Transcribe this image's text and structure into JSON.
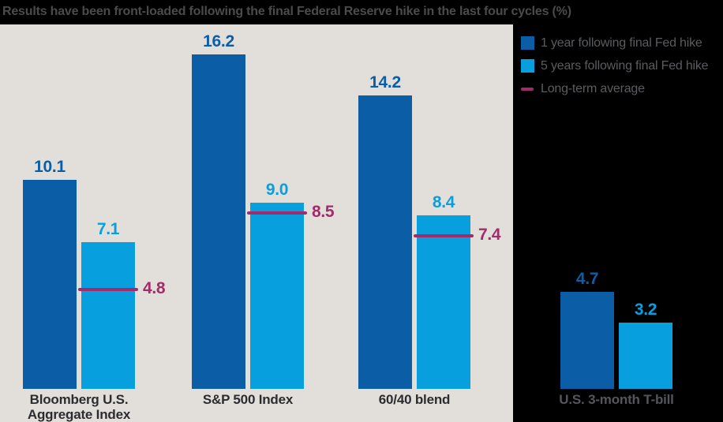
{
  "title": "Results have been front-loaded following the final Federal Reserve hike in the last four cycles (%)",
  "colors": {
    "dark_blue": "#0b5ea6",
    "light_blue": "#089fdf",
    "magenta": "#a32b6b",
    "panel_bg": "#e2dfda",
    "page_bg": "#000000",
    "title_text": "#4b4b4e",
    "legend_text": "#5b5c5f",
    "category_text": "#2c2c30",
    "category_text_on_black": "#55565b"
  },
  "legend": {
    "items": [
      {
        "label": "1 year following final Fed hike",
        "swatch": "square",
        "color": "dark_blue"
      },
      {
        "label": "5 years following final Fed hike",
        "swatch": "square",
        "color": "light_blue"
      },
      {
        "label": "Long-term average",
        "swatch": "dash",
        "color": "magenta"
      }
    ]
  },
  "chart_data": {
    "type": "bar",
    "unit": "%",
    "title": "Results have been front-loaded following the final Federal Reserve hike in the last four cycles (%)",
    "legend_position": "top-right",
    "grid": false,
    "ylim": [
      0,
      17.6
    ],
    "series_names": [
      "1 year following final Fed hike",
      "5 years following final Fed hike"
    ],
    "categories": [
      "Bloomberg U.S. Aggregate Index",
      "S&P 500 Index",
      "60/40 blend",
      "U.S. 3-month T-bill"
    ],
    "series": [
      {
        "name": "1 year following final Fed hike",
        "values": [
          10.1,
          16.2,
          14.2,
          4.7
        ]
      },
      {
        "name": "5 years following final Fed hike",
        "values": [
          7.1,
          9.0,
          8.4,
          3.2
        ]
      }
    ],
    "long_term_average": [
      4.8,
      8.5,
      7.4,
      null
    ],
    "groups": [
      {
        "category_lines": [
          "Bloomberg U.S.",
          "Aggregate Index"
        ],
        "one_year": 10.1,
        "five_years": 7.1,
        "long_term_average": 4.8,
        "region": "panel"
      },
      {
        "category_lines": [
          "S&P 500 Index"
        ],
        "one_year": 16.2,
        "five_years": 9.0,
        "long_term_average": 8.5,
        "region": "panel"
      },
      {
        "category_lines": [
          "60/40 blend"
        ],
        "one_year": 14.2,
        "five_years": 8.4,
        "long_term_average": 7.4,
        "region": "panel"
      },
      {
        "category_lines": [
          "U.S. 3-month T-bill"
        ],
        "one_year": 4.7,
        "five_years": 3.2,
        "long_term_average": null,
        "region": "black"
      }
    ]
  }
}
